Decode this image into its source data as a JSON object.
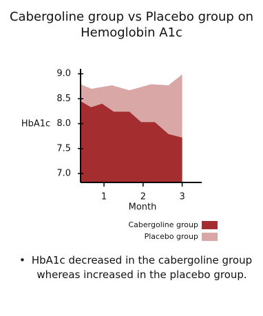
{
  "chart_data": {
    "type": "area",
    "title": [
      "Cabergoline group vs Placebo group on",
      "Hemoglobin A1c"
    ],
    "ylabel": "HbA1c",
    "xlabel": "Month",
    "xlim": [
      0.4,
      3.5
    ],
    "xticks": [
      1,
      2,
      3
    ],
    "ylim": [
      6.82,
      9.1
    ],
    "yticks": [
      {
        "value": 7,
        "label": "7.0"
      },
      7.5,
      {
        "value": 8,
        "label": "8.0"
      },
      8.5,
      {
        "value": 9,
        "label": "9.0"
      }
    ],
    "series": [
      {
        "name": "Placebo group",
        "color": "#d9a7a6",
        "x": [
          0.4,
          0.68,
          1.2,
          1.65,
          2.2,
          2.65,
          3.0
        ],
        "values": [
          8.79,
          8.7,
          8.77,
          8.67,
          8.79,
          8.77,
          8.99
        ]
      },
      {
        "name": "Cabergoline group",
        "color": "#a32d2f",
        "x": [
          0.4,
          0.67,
          0.95,
          1.25,
          1.65,
          1.95,
          2.3,
          2.65,
          3.0
        ],
        "values": [
          8.45,
          8.33,
          8.4,
          8.24,
          8.24,
          8.03,
          8.03,
          7.79,
          7.72
        ]
      }
    ]
  },
  "note": "HbA1c decreased in the cabergoline group whereas increased in the placebo group."
}
